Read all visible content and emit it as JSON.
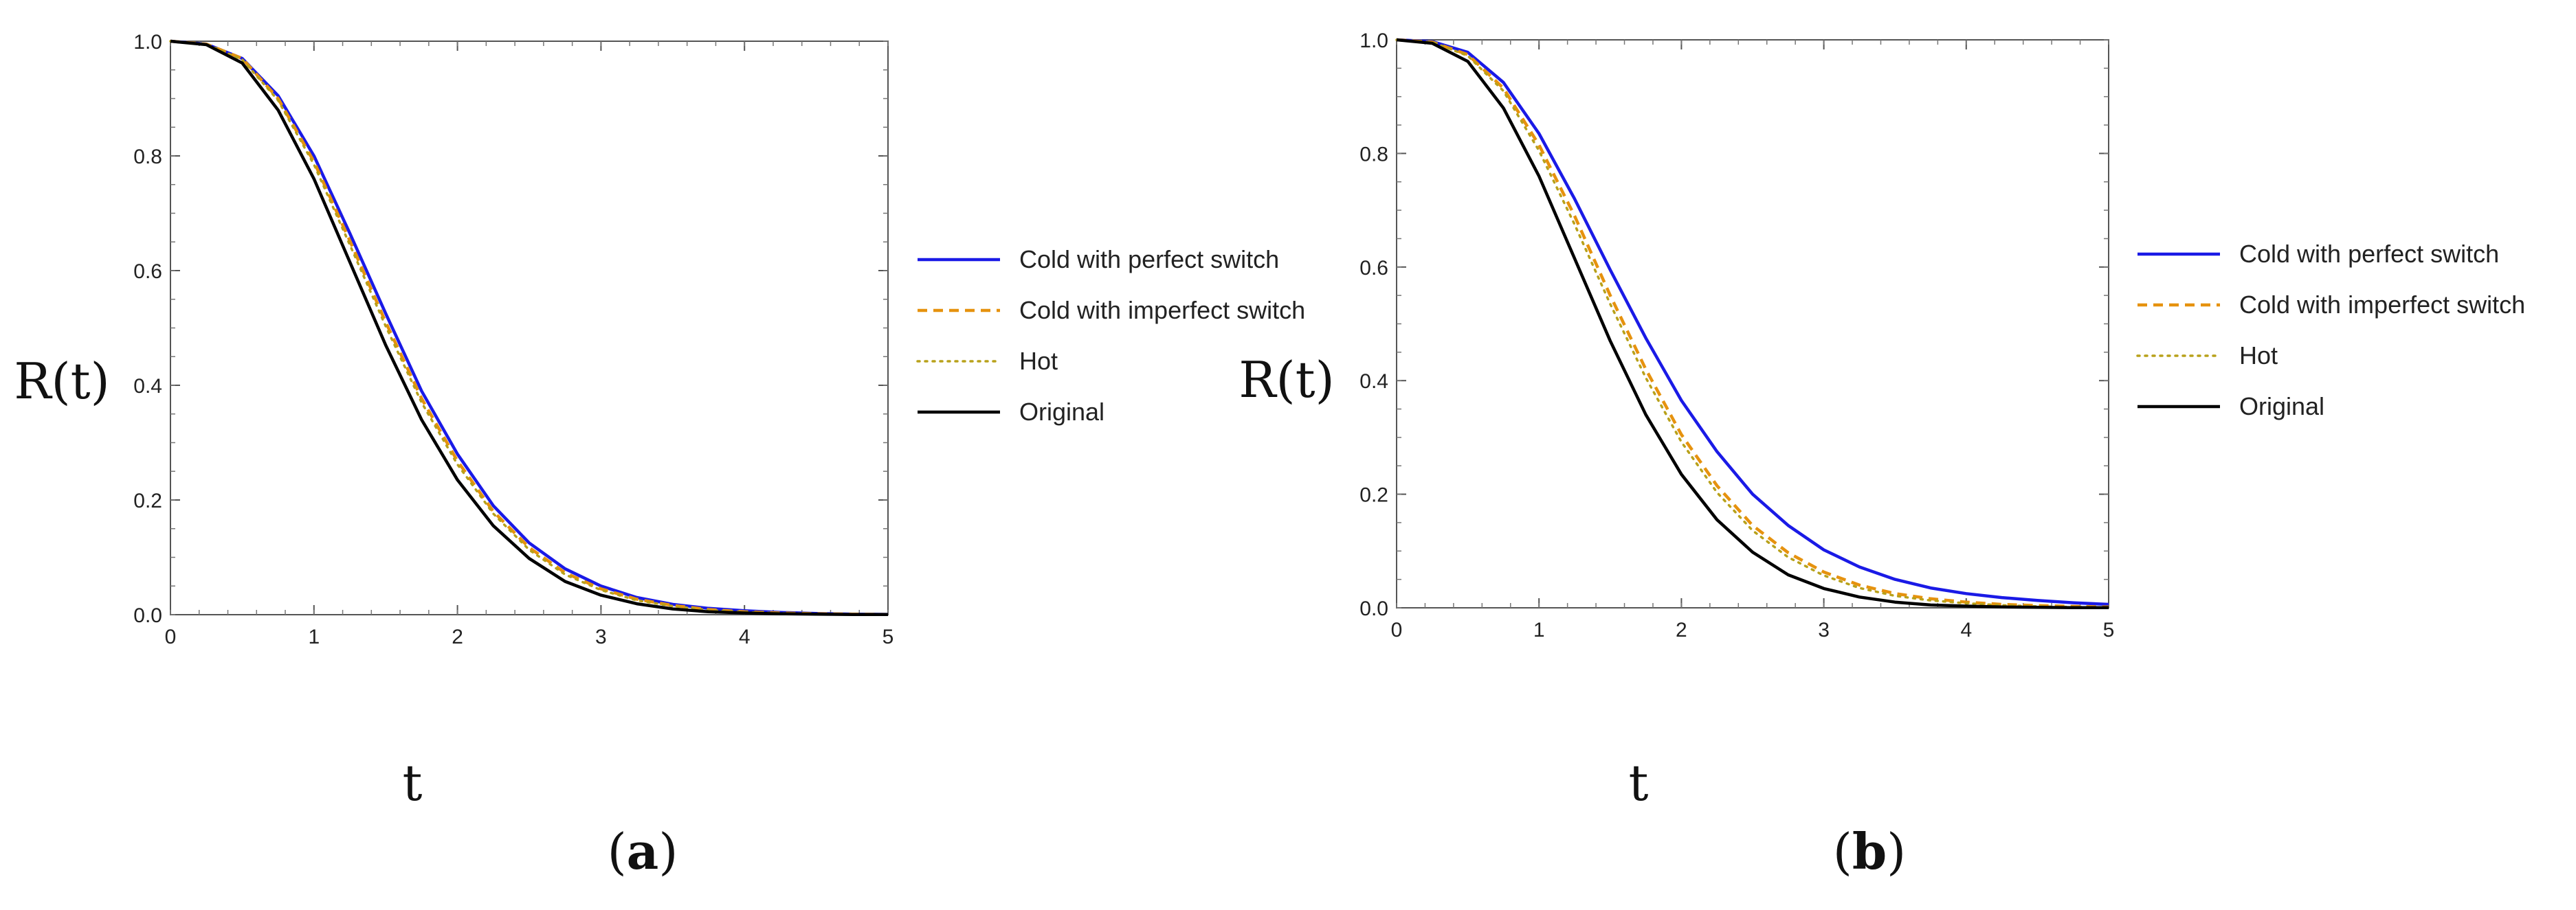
{
  "chart_data": [
    {
      "type": "line",
      "panel": "a",
      "caption": {
        "open": "(",
        "letter": "a",
        "close": ")"
      },
      "xlabel": "t",
      "ylabel": "R(t)",
      "xlim": [
        0,
        5
      ],
      "ylim": [
        0,
        1
      ],
      "xticks": [
        "0",
        "1",
        "2",
        "3",
        "4",
        "5"
      ],
      "yticks": [
        "0.0",
        "0.2",
        "0.4",
        "0.6",
        "0.8",
        "1.0"
      ],
      "legend_position": "right",
      "x": [
        0,
        0.25,
        0.5,
        0.75,
        1,
        1.25,
        1.5,
        1.75,
        2,
        2.25,
        2.5,
        2.75,
        3,
        3.25,
        3.5,
        3.75,
        4,
        4.25,
        4.5,
        4.75,
        5
      ],
      "series": [
        {
          "name": "Cold with perfect switch",
          "color": "#1a1ae6",
          "style": "solid",
          "values": [
            1.0,
            0.995,
            0.97,
            0.905,
            0.8,
            0.665,
            0.525,
            0.39,
            0.28,
            0.19,
            0.125,
            0.08,
            0.05,
            0.03,
            0.018,
            0.011,
            0.007,
            0.004,
            0.002,
            0.001,
            0.0005
          ]
        },
        {
          "name": "Cold with imperfect switch",
          "color": "#e6920e",
          "style": "dashed",
          "values": [
            1.0,
            0.995,
            0.97,
            0.9,
            0.79,
            0.652,
            0.51,
            0.377,
            0.268,
            0.18,
            0.117,
            0.073,
            0.045,
            0.027,
            0.016,
            0.009,
            0.005,
            0.003,
            0.0017,
            0.0009,
            0.0004
          ]
        },
        {
          "name": "Hot",
          "color": "#b8a11a",
          "style": "dotted",
          "values": [
            1.0,
            0.995,
            0.968,
            0.897,
            0.785,
            0.645,
            0.503,
            0.37,
            0.262,
            0.176,
            0.113,
            0.07,
            0.043,
            0.025,
            0.015,
            0.008,
            0.0045,
            0.0025,
            0.0014,
            0.0007,
            0.0003
          ]
        },
        {
          "name": "Original",
          "color": "#000000",
          "style": "solid",
          "values": [
            1.0,
            0.994,
            0.962,
            0.88,
            0.76,
            0.615,
            0.47,
            0.34,
            0.235,
            0.155,
            0.098,
            0.058,
            0.034,
            0.019,
            0.01,
            0.005,
            0.003,
            0.0015,
            0.0008,
            0.0004,
            0.0002
          ]
        }
      ]
    },
    {
      "type": "line",
      "panel": "b",
      "caption": {
        "open": "(",
        "letter": "b",
        "close": ")"
      },
      "xlabel": "t",
      "ylabel": "R(t)",
      "xlim": [
        0,
        5
      ],
      "ylim": [
        0,
        1
      ],
      "xticks": [
        "0",
        "1",
        "2",
        "3",
        "4",
        "5"
      ],
      "yticks": [
        "0.0",
        "0.2",
        "0.4",
        "0.6",
        "0.8",
        "1.0"
      ],
      "legend_position": "right",
      "x": [
        0,
        0.25,
        0.5,
        0.75,
        1,
        1.25,
        1.5,
        1.75,
        2,
        2.25,
        2.5,
        2.75,
        3,
        3.25,
        3.5,
        3.75,
        4,
        4.25,
        4.5,
        4.75,
        5
      ],
      "series": [
        {
          "name": "Cold with perfect switch",
          "color": "#1a1ae6",
          "style": "solid",
          "values": [
            1.0,
            0.997,
            0.978,
            0.925,
            0.835,
            0.72,
            0.595,
            0.475,
            0.365,
            0.275,
            0.2,
            0.145,
            0.102,
            0.072,
            0.05,
            0.035,
            0.025,
            0.018,
            0.013,
            0.009,
            0.006
          ]
        },
        {
          "name": "Cold with imperfect switch",
          "color": "#e6920e",
          "style": "dashed",
          "values": [
            1.0,
            0.996,
            0.974,
            0.915,
            0.815,
            0.69,
            0.55,
            0.42,
            0.305,
            0.215,
            0.145,
            0.097,
            0.063,
            0.04,
            0.025,
            0.016,
            0.01,
            0.006,
            0.004,
            0.0025,
            0.0015
          ]
        },
        {
          "name": "Hot",
          "color": "#b8a11a",
          "style": "dotted",
          "values": [
            1.0,
            0.996,
            0.972,
            0.91,
            0.805,
            0.675,
            0.535,
            0.405,
            0.292,
            0.203,
            0.136,
            0.089,
            0.057,
            0.035,
            0.021,
            0.013,
            0.008,
            0.0045,
            0.0025,
            0.0015,
            0.0008
          ]
        },
        {
          "name": "Original",
          "color": "#000000",
          "style": "solid",
          "values": [
            1.0,
            0.994,
            0.962,
            0.88,
            0.76,
            0.615,
            0.47,
            0.34,
            0.235,
            0.155,
            0.098,
            0.058,
            0.034,
            0.019,
            0.01,
            0.005,
            0.003,
            0.0015,
            0.0008,
            0.0004,
            0.0002
          ]
        }
      ]
    }
  ]
}
